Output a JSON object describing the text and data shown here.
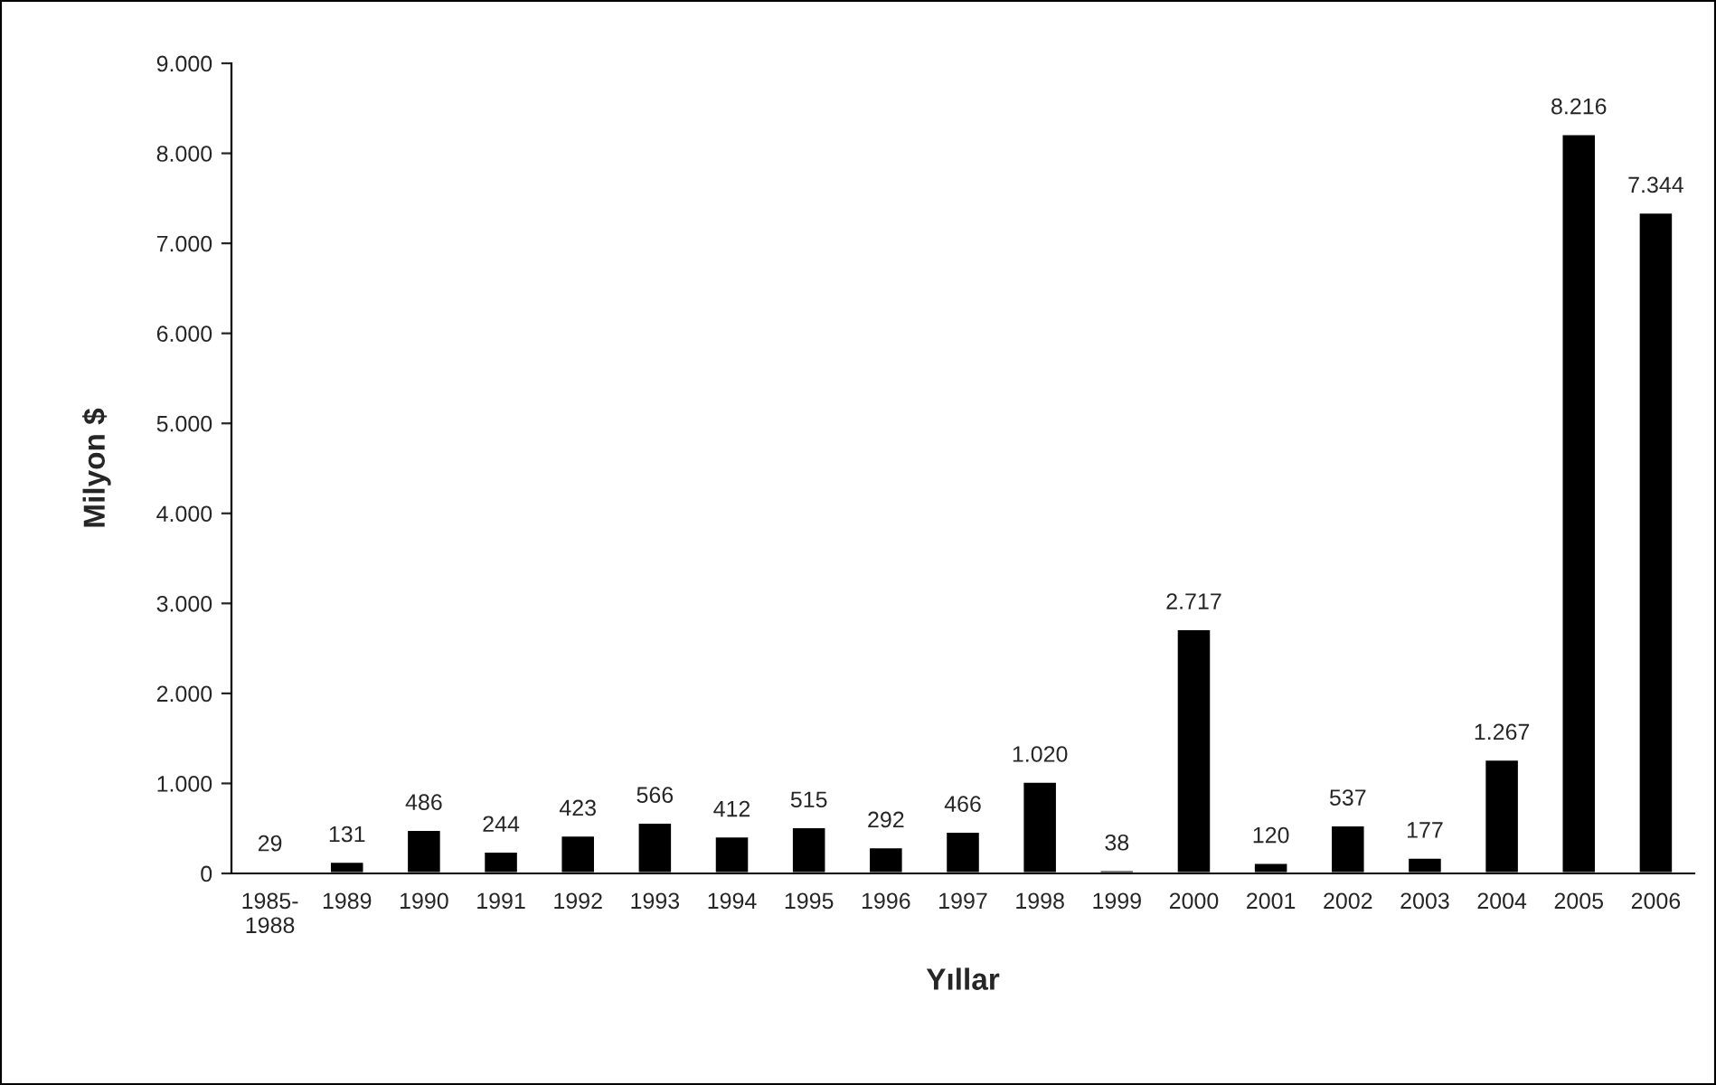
{
  "chart_data": {
    "type": "bar",
    "xlabel": "Yıllar",
    "ylabel": "Milyon $",
    "categories": [
      "1985-\n1988",
      "1989",
      "1990",
      "1991",
      "1992",
      "1993",
      "1994",
      "1995",
      "1996",
      "1997",
      "1998",
      "1999",
      "2000",
      "2001",
      "2002",
      "2003",
      "2004",
      "2005",
      "2006"
    ],
    "values": [
      29,
      131,
      486,
      244,
      423,
      566,
      412,
      515,
      292,
      466,
      1020,
      38,
      2717,
      120,
      537,
      177,
      1267,
      8216,
      7344
    ],
    "value_labels": [
      "29",
      "131",
      "486",
      "244",
      "423",
      "566",
      "412",
      "515",
      "292",
      "466",
      "1.020",
      "38",
      "2.717",
      "120",
      "537",
      "177",
      "1.267",
      "8.216",
      "7.344"
    ],
    "color": "#000000",
    "ylim": [
      0,
      9000
    ],
    "yticks": [
      {
        "value": 0,
        "label": "0"
      },
      {
        "value": 1000,
        "label": "1.000"
      },
      {
        "value": 2000,
        "label": "2.000"
      },
      {
        "value": 3000,
        "label": "3.000"
      },
      {
        "value": 4000,
        "label": "4.000"
      },
      {
        "value": 5000,
        "label": "5.000"
      },
      {
        "value": 6000,
        "label": "6.000"
      },
      {
        "value": 7000,
        "label": "7.000"
      },
      {
        "value": 8000,
        "label": "8.000"
      },
      {
        "value": 9000,
        "label": "9.000"
      }
    ],
    "grid": false,
    "legend": false
  }
}
